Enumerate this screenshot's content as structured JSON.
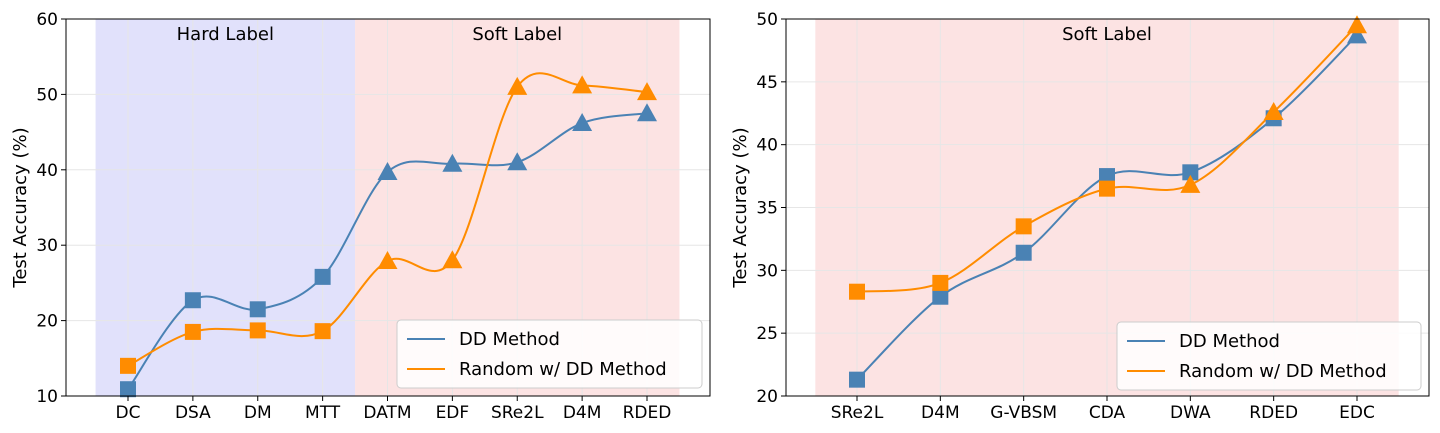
{
  "colors": {
    "dd": "#4a82b4",
    "random": "#ff8c00",
    "hard_region": "#e1e1fb",
    "soft_region": "#fce3e3"
  },
  "chart_data": [
    {
      "type": "line",
      "ylabel": "Test Accuracy (%)",
      "ylim": [
        10,
        60
      ],
      "yticks": [
        10,
        20,
        30,
        40,
        50,
        60
      ],
      "categories": [
        "DC",
        "DSA",
        "DM",
        "MTT",
        "DATM",
        "EDF",
        "SRe2L",
        "D4M",
        "RDED"
      ],
      "grid": true,
      "legend": "bottom-right",
      "regions": [
        {
          "label": "Hard Label",
          "from": "DC",
          "to": "MTT",
          "color": "hard"
        },
        {
          "label": "Soft Label",
          "from": "DATM",
          "to": "RDED",
          "color": "soft"
        }
      ],
      "series": [
        {
          "name": "DD Method",
          "color": "dd",
          "values": [
            10.9,
            22.7,
            21.5,
            25.8,
            39.7,
            40.8,
            41.0,
            46.2,
            47.5
          ],
          "markers": [
            "square",
            "square",
            "square",
            "square",
            "triangle",
            "triangle",
            "triangle",
            "triangle",
            "triangle"
          ]
        },
        {
          "name": "Random w/ DD Method",
          "color": "random",
          "values": [
            14.0,
            18.5,
            18.7,
            18.6,
            27.9,
            28.0,
            51.0,
            51.2,
            50.3
          ],
          "markers": [
            "square",
            "square",
            "square",
            "square",
            "triangle",
            "triangle",
            "triangle",
            "triangle",
            "triangle"
          ]
        }
      ]
    },
    {
      "type": "line",
      "ylabel": "Test Accuracy (%)",
      "ylim": [
        20,
        50
      ],
      "yticks": [
        20,
        25,
        30,
        35,
        40,
        45,
        50
      ],
      "categories": [
        "SRe2L",
        "D4M",
        "G-VBSM",
        "CDA",
        "DWA",
        "RDED",
        "EDC"
      ],
      "grid": true,
      "legend": "bottom-right",
      "regions": [
        {
          "label": "Soft Label",
          "from": "SRe2L",
          "to": "EDC",
          "color": "soft"
        }
      ],
      "series": [
        {
          "name": "DD Method",
          "color": "dd",
          "values": [
            21.3,
            27.9,
            31.4,
            37.5,
            37.8,
            42.1,
            48.7
          ],
          "markers": [
            "square",
            "square",
            "square",
            "square",
            "square",
            "square",
            "triangle"
          ]
        },
        {
          "name": "Random w/ DD Method",
          "color": "random",
          "values": [
            28.3,
            29.0,
            33.5,
            36.5,
            36.8,
            42.6,
            49.5
          ],
          "markers": [
            "square",
            "square",
            "square",
            "square",
            "triangle",
            "triangle",
            "triangle"
          ]
        }
      ]
    }
  ]
}
